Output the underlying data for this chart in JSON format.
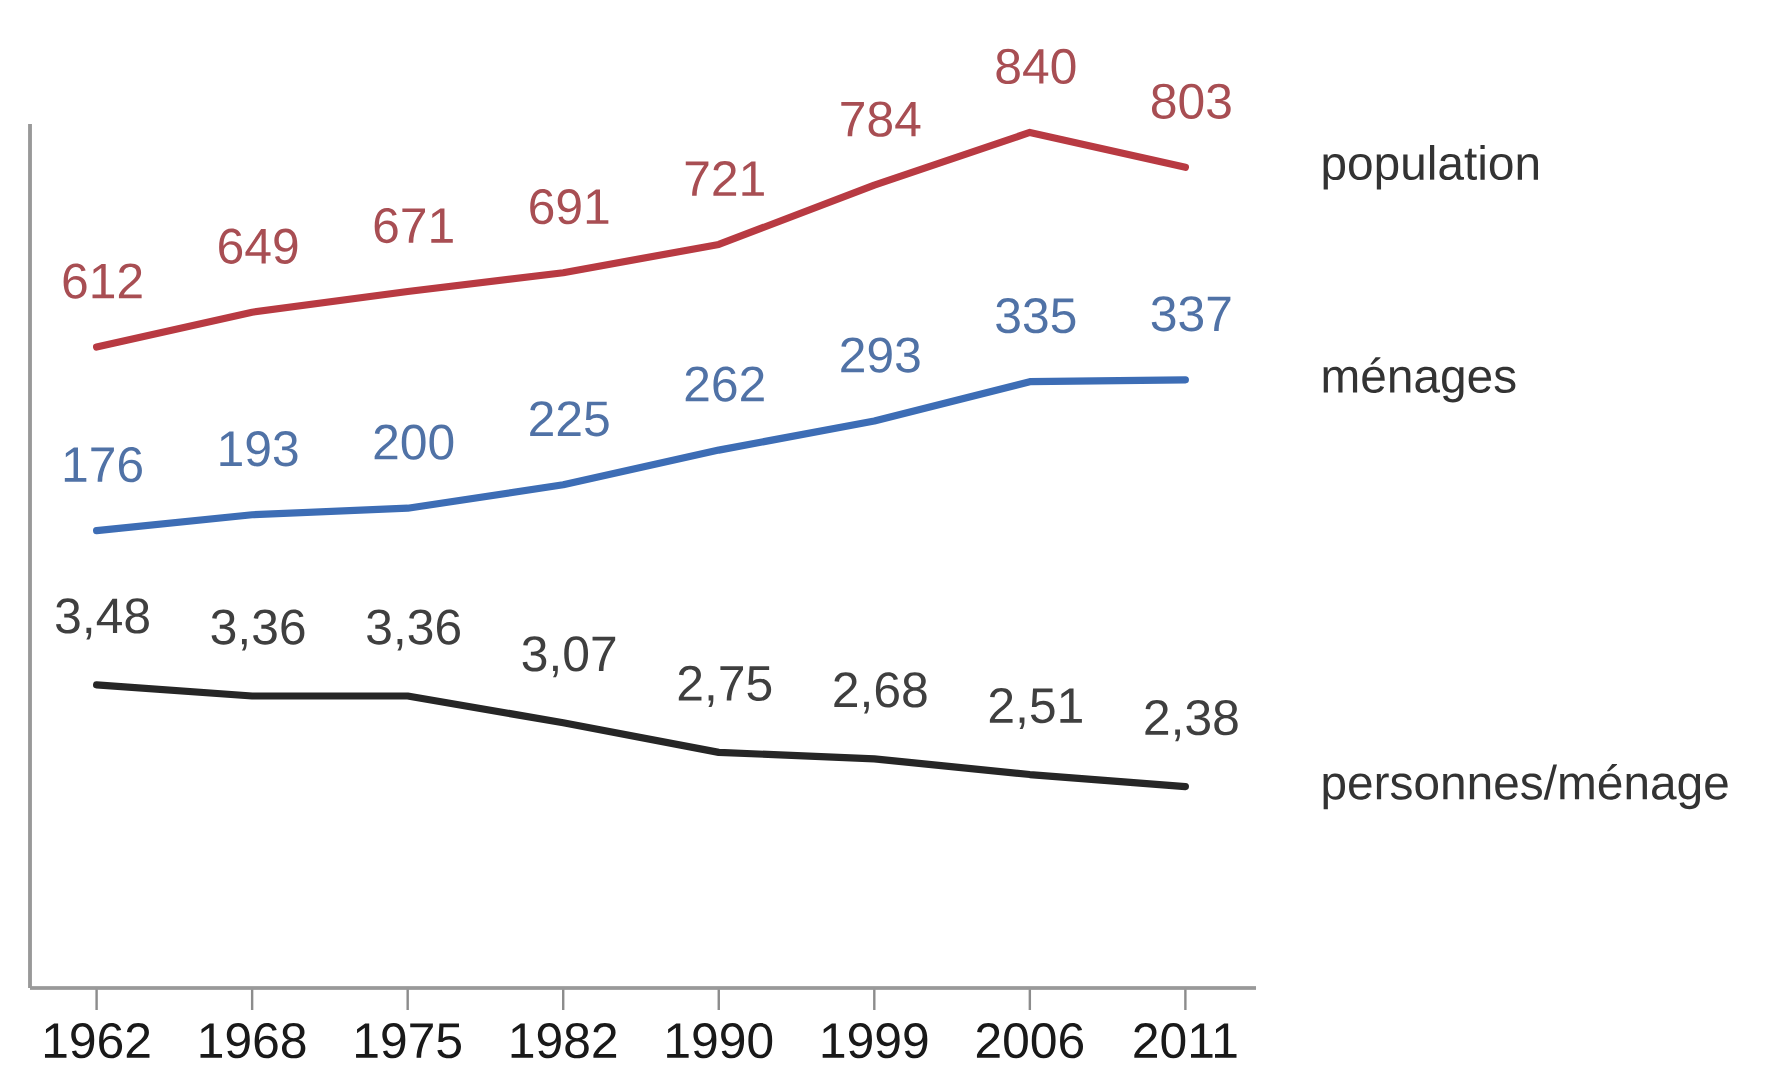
{
  "chart_data": [
    {
      "type": "line",
      "categories": [
        "1962",
        "1968",
        "1975",
        "1982",
        "1990",
        "1999",
        "2006",
        "2011"
      ],
      "series": [
        {
          "name": "population",
          "color": "#b83a42",
          "values": [
            612,
            649,
            671,
            691,
            721,
            784,
            840,
            803
          ],
          "value_labels": [
            "612",
            "649",
            "671",
            "691",
            "721",
            "784",
            "840",
            "803"
          ]
        }
      ],
      "ylim": [
        -69,
        849
      ],
      "tick_labels": "x",
      "marker": "none",
      "line_style": "solid"
    },
    {
      "type": "line",
      "categories": [
        "1962",
        "1968",
        "1975",
        "1982",
        "1990",
        "1999",
        "2006",
        "2011"
      ],
      "series": [
        {
          "name": "ménages",
          "color": "#3d6db5",
          "values": [
            176,
            193,
            200,
            225,
            262,
            293,
            335,
            337
          ],
          "value_labels": [
            "176",
            "193",
            "200",
            "225",
            "262",
            "293",
            "335",
            "337"
          ]
        }
      ],
      "ylim": [
        -312,
        610
      ],
      "tick_labels": false,
      "marker": "none",
      "line_style": "solid"
    },
    {
      "type": "line",
      "categories": [
        "1962",
        "1968",
        "1975",
        "1982",
        "1990",
        "1999",
        "2006",
        "2011"
      ],
      "series": [
        {
          "name": "personnes/ménage",
          "color": "#262626",
          "values": [
            3.48,
            3.36,
            3.36,
            3.07,
            2.75,
            2.68,
            2.51,
            2.38
          ],
          "value_labels": [
            "3,48",
            "3,36",
            "3,36",
            "3,07",
            "2,75",
            "2,68",
            "2,51",
            "2,38"
          ]
        }
      ],
      "ylim": [
        0.2,
        9.55
      ],
      "tick_labels": false,
      "marker": "none",
      "line_style": "solid"
    }
  ]
}
